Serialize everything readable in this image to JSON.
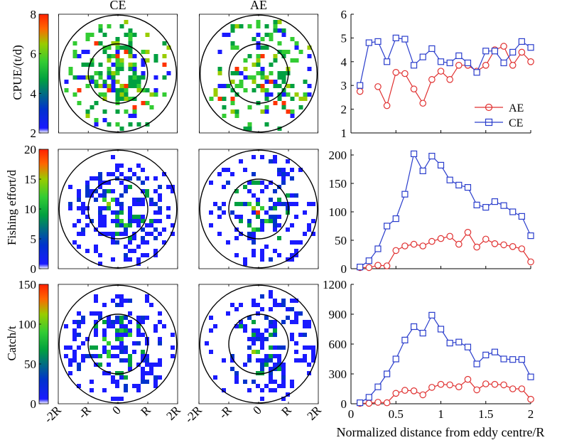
{
  "figure": {
    "columns": [
      "CE",
      "AE"
    ],
    "map_tick_labels": [
      "-2R",
      "-R",
      "0",
      "R",
      "2R"
    ],
    "xlabel": "Normalized distance from eddy centre/R"
  },
  "colors": {
    "AE": "#e03030",
    "CE": "#2a3dcc",
    "colormap": [
      "#1a1aff",
      "#0033cc",
      "#00a040",
      "#33cc33",
      "#99cc00",
      "#ff3300"
    ]
  },
  "chart_data": [
    {
      "type": "line",
      "ylabel": "CPUE/(t/d)",
      "ylim": [
        1,
        6
      ],
      "yticks": [
        1,
        2,
        3,
        4,
        5,
        6
      ],
      "xlim": [
        0,
        2
      ],
      "xticks": [
        0,
        0.5,
        1,
        1.5,
        2
      ],
      "xtick_labels": [
        "0",
        "0.5",
        "1",
        "1.5",
        "2"
      ],
      "colorbar": {
        "range": [
          2,
          8
        ],
        "ticks": [
          2,
          4,
          6,
          8
        ]
      },
      "legend": {
        "position": "bottom-right",
        "entries": [
          "AE",
          "CE"
        ]
      },
      "x": [
        0.1,
        0.2,
        0.3,
        0.4,
        0.5,
        0.6,
        0.7,
        0.8,
        0.9,
        1.0,
        1.1,
        1.2,
        1.3,
        1.4,
        1.5,
        1.6,
        1.7,
        1.8,
        1.9,
        2.0
      ],
      "series": [
        {
          "name": "AE",
          "marker": "circle",
          "values": [
            2.75,
            null,
            2.95,
            2.15,
            3.55,
            3.5,
            2.85,
            2.25,
            3.25,
            3.6,
            3.25,
            3.85,
            3.85,
            3.6,
            3.85,
            4.5,
            4.65,
            3.85,
            4.4,
            4.0
          ]
        },
        {
          "name": "CE",
          "marker": "square",
          "values": [
            3.0,
            4.8,
            4.85,
            4.0,
            5.0,
            4.95,
            3.85,
            4.2,
            4.55,
            4.0,
            3.95,
            4.25,
            3.95,
            3.55,
            4.45,
            4.45,
            3.95,
            4.4,
            4.85,
            4.6
          ]
        }
      ]
    },
    {
      "type": "line",
      "ylabel": "Fishing effort/d",
      "ylim": [
        0,
        210
      ],
      "yticks": [
        0,
        50,
        100,
        150,
        200
      ],
      "xlim": [
        0,
        2
      ],
      "xticks": [
        0,
        0.5,
        1,
        1.5,
        2
      ],
      "xtick_labels": [
        "0",
        "0.5",
        "1",
        "1.5",
        "2"
      ],
      "colorbar": {
        "range": [
          0,
          20
        ],
        "ticks": [
          0,
          5,
          10,
          15,
          20
        ]
      },
      "x": [
        0.1,
        0.2,
        0.3,
        0.4,
        0.5,
        0.6,
        0.7,
        0.8,
        0.9,
        1.0,
        1.1,
        1.2,
        1.3,
        1.4,
        1.5,
        1.6,
        1.7,
        1.8,
        1.9,
        2.0
      ],
      "series": [
        {
          "name": "AE",
          "marker": "circle",
          "values": [
            2,
            2,
            6,
            5,
            32,
            40,
            43,
            40,
            48,
            53,
            57,
            43,
            64,
            38,
            52,
            44,
            42,
            39,
            35,
            12
          ]
        },
        {
          "name": "CE",
          "marker": "square",
          "values": [
            3,
            14,
            35,
            75,
            88,
            131,
            202,
            172,
            198,
            182,
            156,
            147,
            143,
            112,
            108,
            118,
            111,
            100,
            92,
            58
          ]
        }
      ]
    },
    {
      "type": "line",
      "ylabel": "Catch/t",
      "ylim": [
        0,
        1200
      ],
      "yticks": [
        0,
        300,
        600,
        900,
        1200
      ],
      "xlim": [
        0,
        2
      ],
      "xticks": [
        0,
        0.5,
        1,
        1.5,
        2
      ],
      "xtick_labels": [
        "0",
        "0.5",
        "1",
        "1.5",
        "2"
      ],
      "colorbar": {
        "range": [
          0,
          150
        ],
        "ticks": [
          0,
          50,
          100,
          150
        ]
      },
      "x": [
        0.1,
        0.2,
        0.3,
        0.4,
        0.5,
        0.6,
        0.7,
        0.8,
        0.9,
        1.0,
        1.1,
        1.2,
        1.3,
        1.4,
        1.5,
        1.6,
        1.7,
        1.8,
        1.9,
        2.0
      ],
      "series": [
        {
          "name": "AE",
          "marker": "circle",
          "values": [
            5,
            5,
            15,
            10,
            105,
            135,
            130,
            90,
            165,
            195,
            190,
            170,
            245,
            140,
            200,
            195,
            190,
            150,
            150,
            45
          ]
        },
        {
          "name": "CE",
          "marker": "square",
          "values": [
            10,
            65,
            170,
            300,
            450,
            640,
            775,
            710,
            890,
            750,
            610,
            620,
            570,
            400,
            490,
            520,
            450,
            445,
            445,
            270
          ]
        }
      ]
    }
  ]
}
